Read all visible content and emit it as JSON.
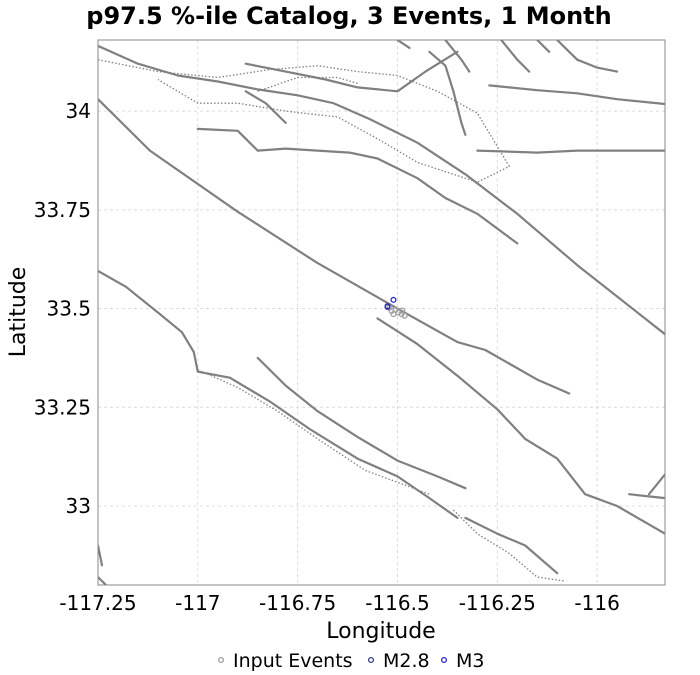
{
  "chart_data": {
    "type": "scatter",
    "title": "p97.5 %-ile Catalog, 3 Events, 1 Month",
    "xlabel": "Longitude",
    "ylabel": "Latitude",
    "xlim": [
      -117.25,
      -115.83
    ],
    "ylim": [
      32.8,
      34.18
    ],
    "x_ticks": [
      {
        "value": -117.25,
        "label": "-117.25"
      },
      {
        "value": -117.0,
        "label": "-117"
      },
      {
        "value": -116.75,
        "label": "-116.75"
      },
      {
        "value": -116.5,
        "label": "-116.5"
      },
      {
        "value": -116.25,
        "label": "-116.25"
      },
      {
        "value": -116.0,
        "label": "-116"
      }
    ],
    "y_ticks": [
      {
        "value": 33.0,
        "label": "33"
      },
      {
        "value": 33.25,
        "label": "33.25"
      },
      {
        "value": 33.5,
        "label": "33.5"
      },
      {
        "value": 33.75,
        "label": "33.75"
      },
      {
        "value": 34.0,
        "label": "34"
      }
    ],
    "grid": true,
    "legend_position": "bottom",
    "series": [
      {
        "name": "Input Events",
        "color": "#a0a0a0",
        "marker": "open-circle",
        "points": [
          {
            "lon": -116.515,
            "lat": 33.494
          },
          {
            "lon": -116.505,
            "lat": 33.497
          },
          {
            "lon": -116.498,
            "lat": 33.49
          },
          {
            "lon": -116.51,
            "lat": 33.486
          },
          {
            "lon": -116.49,
            "lat": 33.486
          },
          {
            "lon": -116.482,
            "lat": 33.482
          },
          {
            "lon": -116.52,
            "lat": 33.502
          },
          {
            "lon": -116.488,
            "lat": 33.495
          }
        ]
      },
      {
        "name": "M2.8",
        "color": "#3a3a8c",
        "marker": "open-circle",
        "points": [
          {
            "lon": -116.525,
            "lat": 33.504
          }
        ]
      },
      {
        "name": "M3",
        "color": "#2a2ad0",
        "marker": "open-circle",
        "points": [
          {
            "lon": -116.51,
            "lat": 33.522
          },
          {
            "lon": -116.525,
            "lat": 33.506
          }
        ]
      }
    ],
    "faults_solid": [
      [
        [
          -117.25,
          34.165
        ],
        [
          -117.15,
          34.12
        ],
        [
          -117.05,
          34.09
        ],
        [
          -116.95,
          34.075
        ],
        [
          -116.85,
          34.055
        ],
        [
          -116.75,
          34.04
        ],
        [
          -116.66,
          34.02
        ],
        [
          -116.57,
          33.98
        ],
        [
          -116.45,
          33.92
        ],
        [
          -116.33,
          33.84
        ],
        [
          -116.2,
          33.74
        ],
        [
          -116.05,
          33.61
        ],
        [
          -115.83,
          33.435
        ]
      ],
      [
        [
          -117.25,
          34.03
        ],
        [
          -117.12,
          33.9
        ],
        [
          -116.9,
          33.745
        ],
        [
          -116.7,
          33.615
        ],
        [
          -116.5,
          33.5
        ],
        [
          -116.35,
          33.415
        ],
        [
          -116.28,
          33.395
        ],
        [
          -116.15,
          33.32
        ],
        [
          -116.07,
          33.285
        ]
      ],
      [
        [
          -116.55,
          33.475
        ],
        [
          -116.45,
          33.41
        ],
        [
          -116.35,
          33.33
        ],
        [
          -116.25,
          33.245
        ],
        [
          -116.18,
          33.17
        ],
        [
          -116.1,
          33.12
        ],
        [
          -116.03,
          33.03
        ],
        [
          -115.95,
          33.0
        ],
        [
          -115.83,
          32.93
        ]
      ],
      [
        [
          -117.25,
          33.595
        ],
        [
          -117.18,
          33.555
        ],
        [
          -117.1,
          33.49
        ],
        [
          -117.04,
          33.44
        ],
        [
          -117.01,
          33.39
        ],
        [
          -117.0,
          33.34
        ],
        [
          -116.92,
          33.325
        ],
        [
          -116.82,
          33.265
        ],
        [
          -116.72,
          33.195
        ],
        [
          -116.6,
          33.12
        ],
        [
          -116.5,
          33.075
        ],
        [
          -116.42,
          33.02
        ],
        [
          -116.35,
          32.97
        ]
      ],
      [
        [
          -116.85,
          33.375
        ],
        [
          -116.78,
          33.305
        ],
        [
          -116.7,
          33.24
        ],
        [
          -116.6,
          33.175
        ],
        [
          -116.5,
          33.115
        ],
        [
          -116.4,
          33.075
        ],
        [
          -116.33,
          33.045
        ]
      ],
      [
        [
          -116.27,
          34.065
        ],
        [
          -116.15,
          34.053
        ],
        [
          -116.05,
          34.045
        ],
        [
          -115.95,
          34.03
        ],
        [
          -115.83,
          34.018
        ]
      ],
      [
        [
          -116.3,
          33.9
        ],
        [
          -116.15,
          33.895
        ],
        [
          -116.05,
          33.9
        ],
        [
          -115.95,
          33.9
        ],
        [
          -115.83,
          33.9
        ]
      ],
      [
        [
          -115.83,
          33.08
        ],
        [
          -115.87,
          33.03
        ]
      ],
      [
        [
          -115.83,
          33.02
        ],
        [
          -115.92,
          33.03
        ]
      ],
      [
        [
          -117.25,
          32.82
        ],
        [
          -117.2,
          32.77
        ]
      ],
      [
        [
          -116.33,
          32.97
        ],
        [
          -116.25,
          32.93
        ],
        [
          -116.18,
          32.9
        ],
        [
          -116.1,
          32.83
        ]
      ],
      [
        [
          -117.25,
          32.9
        ],
        [
          -117.24,
          32.85
        ]
      ],
      [
        [
          -116.88,
          34.12
        ],
        [
          -116.78,
          34.1
        ],
        [
          -116.68,
          34.08
        ],
        [
          -116.6,
          34.06
        ],
        [
          -116.5,
          34.05
        ],
        [
          -116.43,
          34.1
        ],
        [
          -116.35,
          34.15
        ]
      ],
      [
        [
          -116.42,
          34.15
        ],
        [
          -116.38,
          34.115
        ],
        [
          -116.36,
          34.05
        ],
        [
          -116.34,
          33.97
        ],
        [
          -116.33,
          33.94
        ]
      ],
      [
        [
          -116.38,
          34.18
        ],
        [
          -116.34,
          34.13
        ],
        [
          -116.32,
          34.1
        ]
      ],
      [
        [
          -116.24,
          34.18
        ],
        [
          -116.2,
          34.13
        ],
        [
          -116.17,
          34.1
        ]
      ],
      [
        [
          -116.1,
          34.18
        ],
        [
          -116.05,
          34.13
        ],
        [
          -116.0,
          34.11
        ],
        [
          -115.95,
          34.1
        ]
      ],
      [
        [
          -116.5,
          34.18
        ],
        [
          -116.47,
          34.16
        ]
      ],
      [
        [
          -116.15,
          34.18
        ],
        [
          -116.12,
          34.15
        ]
      ],
      [
        [
          -117.0,
          33.955
        ],
        [
          -116.9,
          33.95
        ],
        [
          -116.85,
          33.9
        ],
        [
          -116.78,
          33.905
        ],
        [
          -116.7,
          33.9
        ],
        [
          -116.62,
          33.895
        ],
        [
          -116.55,
          33.88
        ],
        [
          -116.45,
          33.83
        ],
        [
          -116.38,
          33.78
        ],
        [
          -116.3,
          33.74
        ],
        [
          -116.2,
          33.665
        ]
      ],
      [
        [
          -116.88,
          34.05
        ],
        [
          -116.83,
          34.02
        ],
        [
          -116.78,
          33.97
        ]
      ]
    ],
    "faults_dotted": [
      [
        [
          -117.25,
          34.13
        ],
        [
          -117.1,
          34.1
        ],
        [
          -116.95,
          34.085
        ],
        [
          -116.82,
          34.105
        ],
        [
          -116.7,
          34.115
        ],
        [
          -116.6,
          34.1
        ],
        [
          -116.5,
          34.09
        ],
        [
          -116.4,
          34.05
        ],
        [
          -116.3,
          33.995
        ],
        [
          -116.22,
          33.86
        ],
        [
          -116.3,
          33.82
        ],
        [
          -116.45,
          33.87
        ],
        [
          -116.55,
          33.93
        ],
        [
          -116.65,
          33.985
        ],
        [
          -116.78,
          34.0
        ],
        [
          -116.9,
          34.02
        ],
        [
          -117.0,
          34.02
        ],
        [
          -117.1,
          34.08
        ]
      ],
      [
        [
          -117.0,
          33.345
        ],
        [
          -116.9,
          33.3
        ],
        [
          -116.8,
          33.24
        ],
        [
          -116.7,
          33.17
        ],
        [
          -116.58,
          33.09
        ],
        [
          -116.5,
          33.06
        ],
        [
          -116.42,
          33.03
        ]
      ],
      [
        [
          -116.36,
          32.99
        ],
        [
          -116.3,
          32.93
        ],
        [
          -116.22,
          32.88
        ],
        [
          -116.15,
          32.82
        ],
        [
          -116.08,
          32.81
        ]
      ],
      [
        [
          -116.85,
          34.05
        ],
        [
          -116.75,
          34.085
        ],
        [
          -116.65,
          34.085
        ],
        [
          -116.6,
          34.07
        ]
      ]
    ]
  }
}
